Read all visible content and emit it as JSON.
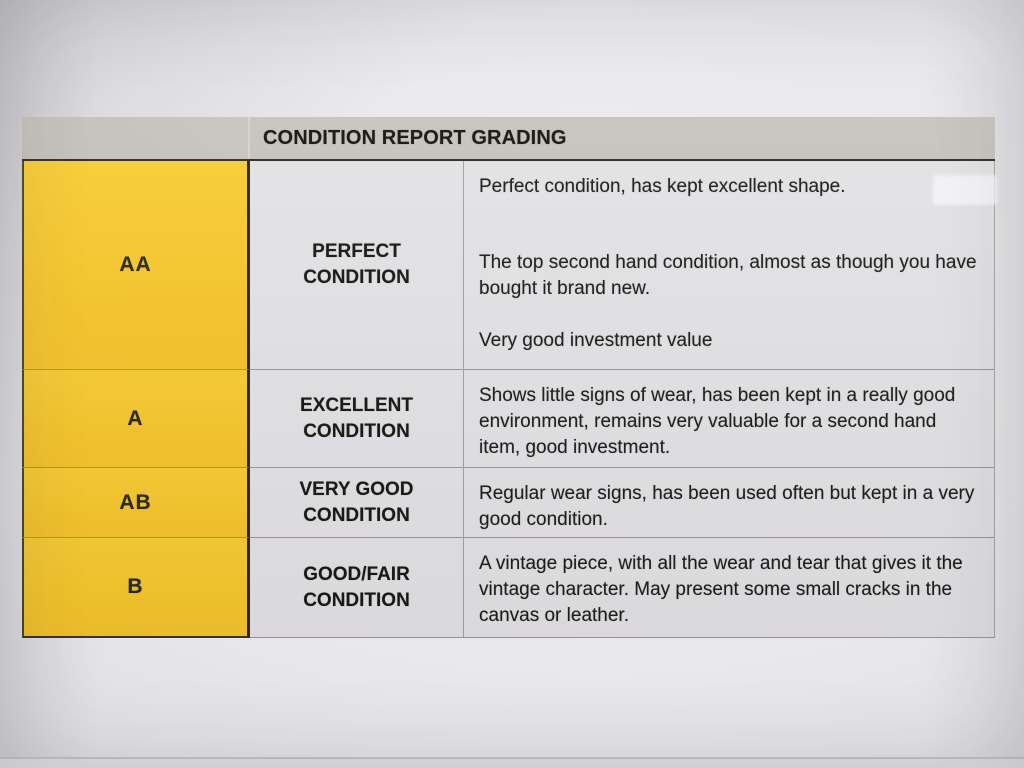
{
  "table": {
    "title": "CONDITION REPORT GRADING",
    "rows": [
      {
        "grade": "AA",
        "condition": "PERFECT CONDITION",
        "description_paragraphs": [
          "Perfect condition, has kept excellent shape.",
          "The top second hand condition, almost as though you have bought it brand new.",
          "Very good investment value"
        ]
      },
      {
        "grade": "A",
        "condition": "EXCELLENT CONDITION",
        "description_paragraphs": [
          "Shows little signs of wear, has been kept in a really good environment, remains very valuable for a second hand item, good investment."
        ]
      },
      {
        "grade": "AB",
        "condition": "VERY GOOD CONDITION",
        "description_paragraphs": [
          "Regular wear signs, has been used often but kept in a very good condition."
        ]
      },
      {
        "grade": "B",
        "condition": "GOOD/FAIR CONDITION",
        "description_paragraphs": [
          "A vintage piece, with all the wear and tear that gives it the vintage character. May present some small cracks in the canvas or leather."
        ]
      }
    ],
    "colors": {
      "grade_column": "#f6c62b",
      "header_bar": "#c6c3bc",
      "cell_background": "#e3e2e5",
      "paper": "#e9e8eb",
      "text": "#1d1b18"
    }
  }
}
